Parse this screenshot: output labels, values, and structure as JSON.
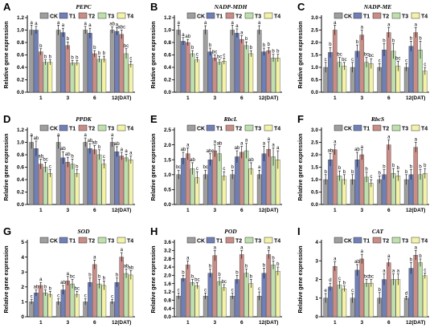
{
  "colors": {
    "CK": "#9e9e9e",
    "T1": "#6f7fb8",
    "T2": "#c98c86",
    "T3": "#bfe0ad",
    "T4": "#f3f2a6",
    "axis": "#000000"
  },
  "legend": [
    "CK",
    "T1",
    "T2",
    "T3",
    "T4"
  ],
  "ylabel": "Relative gene expression",
  "chart_data": [
    {
      "type": "bar",
      "letter": "A",
      "title": "PEPC",
      "categories": [
        "1",
        "3",
        "6",
        "12(DAT)"
      ],
      "ylim": [
        0,
        1.2
      ],
      "yticks": [
        "0.0",
        "0.2",
        "0.4",
        "0.6",
        "0.8",
        "1.0",
        "1.2"
      ],
      "series": [
        {
          "name": "CK",
          "values": [
            1.0,
            1.0,
            1.0,
            1.0
          ],
          "errors": [
            0.08,
            0.08,
            0.06,
            0.05
          ],
          "labels": [
            "a",
            "a",
            "a",
            "ab"
          ]
        },
        {
          "name": "T1",
          "values": [
            1.0,
            0.96,
            0.95,
            0.98
          ],
          "errors": [
            0.06,
            0.07,
            0.08,
            0.06
          ],
          "labels": [
            "a",
            "a",
            "a",
            "a"
          ]
        },
        {
          "name": "T2",
          "values": [
            0.65,
            0.75,
            0.62,
            0.93
          ],
          "errors": [
            0.05,
            0.06,
            0.05,
            0.07
          ],
          "labels": [
            "b",
            "b",
            "b",
            "abc"
          ]
        },
        {
          "name": "T3",
          "values": [
            0.48,
            0.47,
            0.53,
            0.62
          ],
          "errors": [
            0.04,
            0.04,
            0.05,
            0.08
          ],
          "labels": [
            "b",
            "b",
            "b",
            "bc"
          ]
        },
        {
          "name": "T4",
          "values": [
            0.48,
            0.47,
            0.53,
            0.45
          ],
          "errors": [
            0.04,
            0.04,
            0.05,
            0.05
          ],
          "labels": [
            "b",
            "b",
            "b",
            "c"
          ]
        }
      ]
    },
    {
      "type": "bar",
      "letter": "B",
      "title": "NADP-MDH",
      "categories": [
        "1",
        "3",
        "6",
        "12(DAT)"
      ],
      "ylim": [
        0,
        1.2
      ],
      "yticks": [
        "0.0",
        "0.2",
        "0.4",
        "0.6",
        "0.8",
        "1.0",
        "1.2"
      ],
      "series": [
        {
          "name": "CK",
          "values": [
            1.0,
            1.0,
            1.0,
            1.0
          ],
          "errors": [
            0.08,
            0.07,
            0.08,
            0.07
          ],
          "labels": [
            "a",
            "a",
            "a",
            "a"
          ]
        },
        {
          "name": "T1",
          "values": [
            0.82,
            0.65,
            0.95,
            0.65
          ],
          "errors": [
            0.06,
            0.06,
            0.07,
            0.06
          ],
          "labels": [
            "a",
            "b",
            "a",
            "b"
          ]
        },
        {
          "name": "T2",
          "values": [
            0.8,
            0.55,
            0.85,
            0.67
          ],
          "errors": [
            0.05,
            0.05,
            0.06,
            0.05
          ],
          "labels": [
            "ab",
            "bc",
            "a",
            "b"
          ]
        },
        {
          "name": "T3",
          "values": [
            0.62,
            0.48,
            0.75,
            0.55
          ],
          "errors": [
            0.05,
            0.04,
            0.06,
            0.06
          ],
          "labels": [
            "b",
            "bc",
            "b",
            "b"
          ]
        },
        {
          "name": "T4",
          "values": [
            0.52,
            0.5,
            0.62,
            0.55
          ],
          "errors": [
            0.04,
            0.05,
            0.05,
            0.06
          ],
          "labels": [
            "c",
            "c",
            "b",
            "b"
          ]
        }
      ]
    },
    {
      "type": "bar",
      "letter": "C",
      "title": "NADP-ME",
      "categories": [
        "1",
        "3",
        "6",
        "12(DAT)"
      ],
      "ylim": [
        0,
        3
      ],
      "yticks": [
        "0.0",
        "0.5",
        "1.0",
        "1.5",
        "2.0",
        "2.5",
        "3.0"
      ],
      "series": [
        {
          "name": "CK",
          "values": [
            1.0,
            1.0,
            1.0,
            1.0
          ],
          "errors": [
            0.2,
            0.2,
            0.15,
            0.15
          ],
          "labels": [
            "c",
            "c",
            "c",
            "c"
          ]
        },
        {
          "name": "T1",
          "values": [
            1.6,
            1.65,
            1.7,
            1.85
          ],
          "errors": [
            0.2,
            0.25,
            0.25,
            0.2
          ],
          "labels": [
            "b",
            "b",
            "b",
            "b"
          ]
        },
        {
          "name": "T2",
          "values": [
            2.5,
            2.3,
            2.4,
            2.4
          ],
          "errors": [
            0.2,
            0.2,
            0.2,
            0.2
          ],
          "labels": [
            "a",
            "a",
            "a",
            "a"
          ]
        },
        {
          "name": "T3",
          "values": [
            1.2,
            1.2,
            1.65,
            1.7
          ],
          "errors": [
            0.2,
            0.2,
            0.3,
            0.35
          ],
          "labels": [
            "bc",
            "bc",
            "b",
            "b"
          ]
        },
        {
          "name": "T4",
          "values": [
            1.05,
            1.15,
            1.05,
            0.85
          ],
          "errors": [
            0.15,
            0.2,
            0.2,
            0.15
          ],
          "labels": [
            "bc",
            "bc",
            "bc",
            "c"
          ]
        }
      ]
    },
    {
      "type": "bar",
      "letter": "D",
      "title": "PPDK",
      "categories": [
        "1",
        "3",
        "6",
        "12(DAT)"
      ],
      "ylim": [
        0,
        1.2
      ],
      "yticks": [
        "0.0",
        "0.2",
        "0.4",
        "0.6",
        "0.8",
        "1.0",
        "1.2"
      ],
      "series": [
        {
          "name": "CK",
          "values": [
            1.0,
            1.0,
            1.0,
            1.0
          ],
          "errors": [
            0.1,
            0.1,
            0.07,
            0.07
          ],
          "labels": [
            "a",
            "a",
            "a",
            "a"
          ]
        },
        {
          "name": "T1",
          "values": [
            0.9,
            0.75,
            0.9,
            0.85
          ],
          "errors": [
            0.12,
            0.1,
            0.08,
            0.08
          ],
          "labels": [
            "ab",
            "ab",
            "ab",
            "ab"
          ]
        },
        {
          "name": "T2",
          "values": [
            0.65,
            0.68,
            0.88,
            0.78
          ],
          "errors": [
            0.08,
            0.08,
            0.07,
            0.06
          ],
          "labels": [
            "ab",
            "ab",
            "ab",
            "a"
          ]
        },
        {
          "name": "T3",
          "values": [
            0.6,
            0.65,
            0.8,
            0.75
          ],
          "errors": [
            0.08,
            0.08,
            0.08,
            0.06
          ],
          "labels": [
            "bc",
            "b",
            "b",
            "a"
          ]
        },
        {
          "name": "T4",
          "values": [
            0.5,
            0.5,
            0.65,
            0.72
          ],
          "errors": [
            0.06,
            0.06,
            0.07,
            0.06
          ],
          "labels": [
            "c",
            "b",
            "c",
            "a"
          ]
        }
      ]
    },
    {
      "type": "bar",
      "letter": "E",
      "title": "RbcL",
      "categories": [
        "1",
        "3",
        "6",
        "12(DAT)"
      ],
      "ylim": [
        0,
        2.5
      ],
      "yticks": [
        "0.0",
        "0.5",
        "1.0",
        "1.5",
        "2.0",
        "2.5"
      ],
      "series": [
        {
          "name": "CK",
          "values": [
            1.0,
            1.0,
            1.0,
            1.0
          ],
          "errors": [
            0.15,
            0.15,
            0.15,
            0.15
          ],
          "labels": [
            "bc",
            "bc",
            "b",
            "a"
          ]
        },
        {
          "name": "T1",
          "values": [
            1.55,
            1.5,
            1.6,
            1.7
          ],
          "errors": [
            0.2,
            0.2,
            0.2,
            0.25
          ],
          "labels": [
            "ab",
            "abc",
            "ab",
            "a"
          ]
        },
        {
          "name": "T2",
          "values": [
            1.7,
            1.8,
            1.75,
            1.85
          ],
          "errors": [
            0.2,
            0.2,
            0.2,
            0.25
          ],
          "labels": [
            "a",
            "a",
            "a",
            "a"
          ]
        },
        {
          "name": "T3",
          "values": [
            1.2,
            1.7,
            1.8,
            1.6
          ],
          "errors": [
            0.2,
            0.25,
            0.25,
            0.3
          ],
          "labels": [
            "ab",
            "ab",
            "a",
            "a"
          ]
        },
        {
          "name": "T4",
          "values": [
            0.9,
            0.95,
            1.2,
            1.5
          ],
          "errors": [
            0.2,
            0.15,
            0.2,
            0.3
          ],
          "labels": [
            "c",
            "c",
            "ab",
            "a"
          ]
        }
      ]
    },
    {
      "type": "bar",
      "letter": "F",
      "title": "RbcS",
      "categories": [
        "1",
        "3",
        "6",
        "12(DAT)"
      ],
      "ylim": [
        0,
        3
      ],
      "yticks": [
        "0.0",
        "0.5",
        "1.0",
        "1.5",
        "2.0",
        "2.5",
        "3.0"
      ],
      "series": [
        {
          "name": "CK",
          "values": [
            1.0,
            1.0,
            1.0,
            1.0
          ],
          "errors": [
            0.2,
            0.2,
            0.15,
            0.2
          ],
          "labels": [
            "b",
            "b",
            "b",
            "b"
          ]
        },
        {
          "name": "T1",
          "values": [
            1.8,
            1.8,
            1.2,
            1.2
          ],
          "errors": [
            0.25,
            0.3,
            0.2,
            0.2
          ],
          "labels": [
            "ab",
            "ab",
            "b",
            "b"
          ]
        },
        {
          "name": "T2",
          "values": [
            2.2,
            2.0,
            2.4,
            2.3
          ],
          "errors": [
            0.2,
            0.2,
            0.2,
            0.2
          ],
          "labels": [
            "a",
            "a",
            "a",
            "a"
          ]
        },
        {
          "name": "T3",
          "values": [
            1.15,
            1.1,
            1.25,
            1.2
          ],
          "errors": [
            0.2,
            0.2,
            0.2,
            0.2
          ],
          "labels": [
            "b",
            "b",
            "b",
            "b"
          ]
        },
        {
          "name": "T4",
          "values": [
            1.0,
            0.85,
            1.15,
            1.25
          ],
          "errors": [
            0.2,
            0.15,
            0.2,
            0.2
          ],
          "labels": [
            "b",
            "c",
            "b",
            "b"
          ]
        }
      ]
    },
    {
      "type": "bar",
      "letter": "G",
      "title": "SOD",
      "categories": [
        "1",
        "3",
        "6",
        "12(DAT)"
      ],
      "ylim": [
        0,
        5
      ],
      "yticks": [
        "0",
        "1",
        "2",
        "3",
        "4",
        "5"
      ],
      "series": [
        {
          "name": "CK",
          "values": [
            1.0,
            1.0,
            1.0,
            1.0
          ],
          "errors": [
            0.15,
            0.2,
            0.2,
            0.15
          ],
          "labels": [
            "c",
            "c",
            "c",
            "c"
          ]
        },
        {
          "name": "T1",
          "values": [
            1.6,
            1.8,
            2.3,
            2.3
          ],
          "errors": [
            0.2,
            0.3,
            0.3,
            0.3
          ],
          "labels": [
            "ab",
            "ab",
            "b",
            "b"
          ]
        },
        {
          "name": "T2",
          "values": [
            2.1,
            2.4,
            3.5,
            4.0
          ],
          "errors": [
            0.2,
            0.3,
            0.3,
            0.3
          ],
          "labels": [
            "a",
            "a",
            "a",
            "a"
          ]
        },
        {
          "name": "T3",
          "values": [
            1.6,
            2.2,
            2.2,
            2.9
          ],
          "errors": [
            0.2,
            0.3,
            0.3,
            0.3
          ],
          "labels": [
            "b",
            "bc",
            "b",
            "ab"
          ]
        },
        {
          "name": "T4",
          "values": [
            1.5,
            1.5,
            2.1,
            2.8
          ],
          "errors": [
            0.2,
            0.2,
            0.3,
            0.3
          ],
          "labels": [
            "b",
            "bc",
            "b",
            "ab"
          ]
        }
      ]
    },
    {
      "type": "bar",
      "letter": "H",
      "title": "POD",
      "categories": [
        "1",
        "3",
        "6",
        "12(DAT)"
      ],
      "ylim": [
        0,
        3.6
      ],
      "yticks": [
        "0.0",
        "0.4",
        "0.8",
        "1.2",
        "1.6",
        "2.0",
        "2.4",
        "2.8",
        "3.2",
        "3.6"
      ],
      "series": [
        {
          "name": "CK",
          "values": [
            1.0,
            1.0,
            1.0,
            1.0
          ],
          "errors": [
            0.15,
            0.15,
            0.15,
            0.2
          ],
          "labels": [
            "c",
            "c",
            "c",
            "c"
          ]
        },
        {
          "name": "T1",
          "values": [
            1.85,
            2.1,
            1.8,
            2.1
          ],
          "errors": [
            0.15,
            0.2,
            0.2,
            0.25
          ],
          "labels": [
            "b",
            "b",
            "b",
            "b"
          ]
        },
        {
          "name": "T2",
          "values": [
            2.5,
            2.95,
            3.0,
            3.0
          ],
          "errors": [
            0.2,
            0.25,
            0.2,
            0.2
          ],
          "labels": [
            "a",
            "a",
            "a",
            "a"
          ]
        },
        {
          "name": "T3",
          "values": [
            1.65,
            1.7,
            2.1,
            2.5
          ],
          "errors": [
            0.15,
            0.2,
            0.2,
            0.2
          ],
          "labels": [
            "b",
            "b",
            "b",
            "b"
          ]
        },
        {
          "name": "T4",
          "values": [
            1.5,
            1.4,
            1.6,
            2.2
          ],
          "errors": [
            0.15,
            0.15,
            0.2,
            0.2
          ],
          "labels": [
            "bc",
            "bc",
            "b",
            "b"
          ]
        }
      ]
    },
    {
      "type": "bar",
      "letter": "I",
      "title": "CAT",
      "categories": [
        "1",
        "3",
        "6",
        "12(DAT)"
      ],
      "ylim": [
        0,
        4
      ],
      "yticks": [
        "0",
        "1",
        "2",
        "3",
        "4"
      ],
      "series": [
        {
          "name": "CK",
          "values": [
            1.0,
            1.0,
            1.0,
            1.0
          ],
          "errors": [
            0.25,
            0.25,
            0.3,
            0.1
          ],
          "labels": [
            "e",
            "c",
            "b",
            "d"
          ]
        },
        {
          "name": "T1",
          "values": [
            1.6,
            2.5,
            2.0,
            2.6
          ],
          "errors": [
            0.2,
            0.3,
            0.3,
            0.3
          ],
          "labels": [
            "d",
            "ab",
            "a",
            "b"
          ]
        },
        {
          "name": "T2",
          "values": [
            2.7,
            3.1,
            2.9,
            3.3
          ],
          "errors": [
            0.25,
            0.25,
            0.2,
            0.25
          ],
          "labels": [
            "a",
            "a",
            "a",
            "a"
          ]
        },
        {
          "name": "T3",
          "values": [
            1.7,
            1.8,
            2.0,
            2.9
          ],
          "errors": [
            0.2,
            0.2,
            0.3,
            0.2
          ],
          "labels": [
            "c",
            "bc",
            "a",
            "b"
          ]
        },
        {
          "name": "T4",
          "values": [
            1.5,
            1.8,
            2.0,
            2.2
          ],
          "errors": [
            0.15,
            0.2,
            0.3,
            0.15
          ],
          "labels": [
            "b",
            "bc",
            "a",
            "c"
          ]
        }
      ]
    }
  ]
}
